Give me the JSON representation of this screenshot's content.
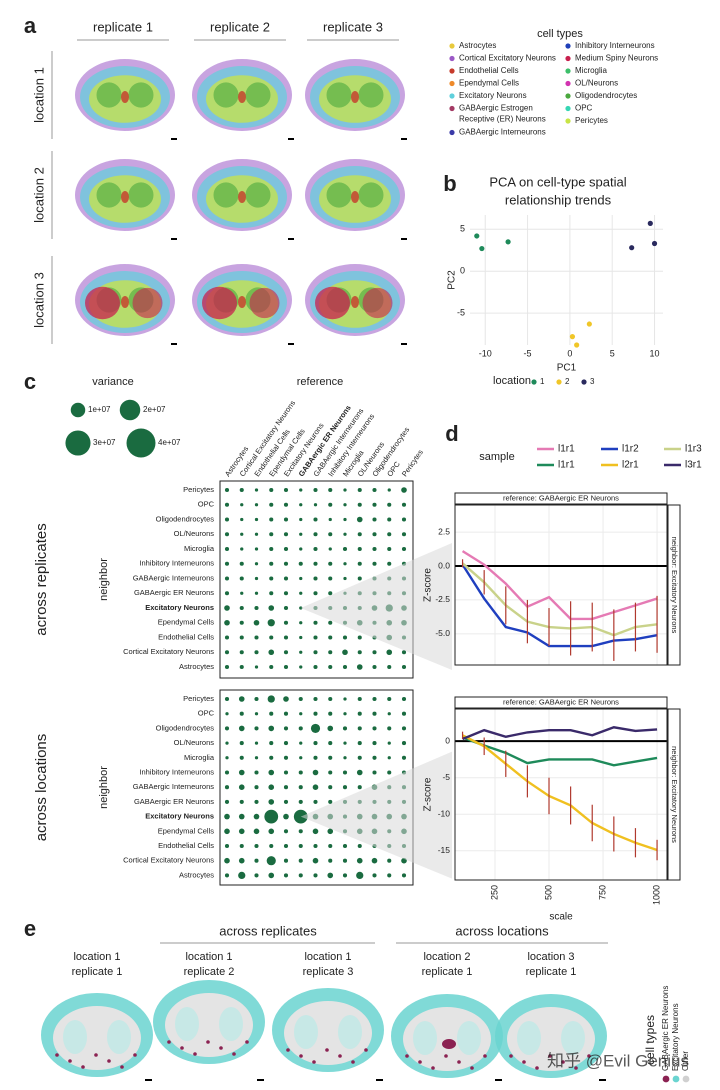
{
  "figure": {
    "panel_labels": [
      "a",
      "b",
      "c",
      "d",
      "e"
    ],
    "panel_a": {
      "columns": [
        "replicate 1",
        "replicate 2",
        "replicate 3"
      ],
      "rows": [
        "location 1",
        "location 2",
        "location 3"
      ],
      "legend_title": "cell types",
      "cell_types": [
        {
          "name": "Astrocytes",
          "color": "#e8c93c"
        },
        {
          "name": "Cortical Excitatory Neurons",
          "color": "#9b59c6"
        },
        {
          "name": "Endothelial Cells",
          "color": "#c63a2b"
        },
        {
          "name": "Ependymal Cells",
          "color": "#ee8a2a"
        },
        {
          "name": "Excitatory Neurons",
          "color": "#5fd0dc"
        },
        {
          "name": [
            "GABAergic Estrogen",
            "Receptive (ER) Neurons"
          ],
          "color": "#a33a64"
        },
        {
          "name": "GABAergic Interneurons",
          "color": "#3a3aa8"
        },
        {
          "name": "Inhibitory Interneurons",
          "color": "#1f3fb8"
        },
        {
          "name": "Medium Spiny Neurons",
          "color": "#c8204e"
        },
        {
          "name": "Microglia",
          "color": "#3cbf6a"
        },
        {
          "name": "OL/Neurons",
          "color": "#d233b0"
        },
        {
          "name": "Oligodendrocytes",
          "color": "#4aa83e"
        },
        {
          "name": "OPC",
          "color": "#36d6b4"
        },
        {
          "name": "Pericytes",
          "color": "#c8e446"
        }
      ]
    },
    "panel_e": {
      "groups": [
        "across replicates",
        "across locations"
      ],
      "samples": [
        [
          "location 1",
          "replicate 1"
        ],
        [
          "location 1",
          "replicate 2"
        ],
        [
          "location 1",
          "replicate 3"
        ],
        [
          "location 2",
          "replicate 1"
        ],
        [
          "location 3",
          "replicate 1"
        ]
      ],
      "legend_title": "cell types",
      "legend": [
        {
          "name": "GABAergic ER Neurons",
          "color": "#8b2252"
        },
        {
          "name": "Excitatory Neurons",
          "color": "#6ad4d0"
        },
        {
          "name": "Other",
          "color": "#d0d0d0"
        }
      ]
    },
    "watermark": "知乎 @Evil Genius"
  },
  "chart_data": [
    {
      "type": "scatter",
      "title": [
        "PCA on cell-type spatial",
        "relationship trends"
      ],
      "x_label": "PC1",
      "y_label": "PC2",
      "xlim": [
        -11.8,
        11
      ],
      "ylim": [
        -8.8,
        6.7
      ],
      "xticks": [
        -10,
        -5,
        0,
        5,
        10
      ],
      "yticks": [
        -5,
        0,
        5
      ],
      "grid": true,
      "legend_title": "location",
      "legend": "bottom",
      "series": [
        {
          "name": "1",
          "color": "#1e8a5a",
          "x": [
            -11,
            -10.4,
            -7.3
          ],
          "y": [
            4.2,
            2.7,
            3.5
          ]
        },
        {
          "name": "2",
          "color": "#f0c628",
          "x": [
            0.3,
            0.8,
            2.3
          ],
          "y": [
            -7.8,
            -8.8,
            -6.3
          ]
        },
        {
          "name": "3",
          "color": "#2a2a5e",
          "x": [
            7.3,
            9.5,
            10
          ],
          "y": [
            2.8,
            5.7,
            3.3
          ]
        }
      ]
    },
    {
      "type": "dotplot",
      "x_label": "reference",
      "y_label": "neighbor",
      "group_label": "across replicates",
      "categories": [
        "Astrocytes",
        "Cortical Excitatory Neurons",
        "Endothelial Cells",
        "Ependymal Cells",
        "Excitatory Neurons",
        "GABAergic ER Neurons",
        "GABAergic Interneurons",
        "Inhibitory Interneurons",
        "Microglia",
        "OL/Neurons",
        "Oligodendrocytes",
        "OPC",
        "Pericytes"
      ],
      "rows": [
        "Pericytes",
        "OPC",
        "Oligodendrocytes",
        "OL/Neurons",
        "Microglia",
        "Inhibitory Interneurons",
        "GABAergic Interneurons",
        "GABAergic ER Neurons",
        "Excitatory Neurons",
        "Ependymal Cells",
        "Endothelial Cells",
        "Cortical Excitatory Neurons",
        "Astrocytes"
      ],
      "color": "#1a6b40",
      "size_title": "variance",
      "size_ticks": [
        {
          "value": 10000000,
          "label": "1e+07"
        },
        {
          "value": 20000000,
          "label": "2e+07"
        },
        {
          "value": 30000000,
          "label": "3e+07"
        },
        {
          "value": 40000000,
          "label": "4e+07"
        }
      ],
      "highlight_row": 8,
      "highlight_column": 5,
      "values": [
        [
          800000.0,
          800000.0,
          500000.0,
          800000.0,
          800000.0,
          500000.0,
          800000.0,
          800000.0,
          500000.0,
          800000.0,
          800000.0,
          500000.0,
          1500000.0
        ],
        [
          800000.0,
          500000.0,
          500000.0,
          800000.0,
          800000.0,
          500000.0,
          500000.0,
          800000.0,
          500000.0,
          800000.0,
          800000.0,
          800000.0,
          800000.0
        ],
        [
          800000.0,
          500000.0,
          500000.0,
          800000.0,
          800000.0,
          500000.0,
          800000.0,
          500000.0,
          500000.0,
          1500000.0,
          800000.0,
          800000.0,
          800000.0
        ],
        [
          800000.0,
          500000.0,
          500000.0,
          800000.0,
          800000.0,
          500000.0,
          800000.0,
          800000.0,
          500000.0,
          800000.0,
          800000.0,
          800000.0,
          800000.0
        ],
        [
          800000.0,
          500000.0,
          500000.0,
          800000.0,
          800000.0,
          500000.0,
          800000.0,
          500000.0,
          800000.0,
          800000.0,
          800000.0,
          800000.0,
          800000.0
        ],
        [
          800000.0,
          800000.0,
          500000.0,
          800000.0,
          800000.0,
          800000.0,
          800000.0,
          800000.0,
          500000.0,
          800000.0,
          800000.0,
          800000.0,
          800000.0
        ],
        [
          800000.0,
          800000.0,
          500000.0,
          800000.0,
          800000.0,
          500000.0,
          800000.0,
          800000.0,
          500000.0,
          800000.0,
          800000.0,
          800000.0,
          800000.0
        ],
        [
          800000.0,
          500000.0,
          500000.0,
          800000.0,
          800000.0,
          500000.0,
          800000.0,
          800000.0,
          500000.0,
          800000.0,
          800000.0,
          800000.0,
          800000.0
        ],
        [
          1500000.0,
          800000.0,
          800000.0,
          1500000.0,
          800000.0,
          500000.0,
          800000.0,
          800000.0,
          800000.0,
          800000.0,
          1500000.0,
          2500000.0,
          1500000.0
        ],
        [
          1500000.0,
          800000.0,
          1500000.0,
          2500000.0,
          800000.0,
          500000.0,
          800000.0,
          800000.0,
          800000.0,
          1500000.0,
          800000.0,
          1500000.0,
          1500000.0
        ],
        [
          800000.0,
          800000.0,
          800000.0,
          800000.0,
          800000.0,
          500000.0,
          800000.0,
          800000.0,
          800000.0,
          800000.0,
          800000.0,
          1500000.0,
          800000.0
        ],
        [
          800000.0,
          800000.0,
          800000.0,
          1500000.0,
          800000.0,
          500000.0,
          800000.0,
          800000.0,
          1500000.0,
          800000.0,
          800000.0,
          1500000.0,
          800000.0
        ],
        [
          800000.0,
          800000.0,
          500000.0,
          800000.0,
          800000.0,
          500000.0,
          800000.0,
          800000.0,
          800000.0,
          1500000.0,
          800000.0,
          800000.0,
          800000.0
        ]
      ]
    },
    {
      "type": "dotplot",
      "y_label": "neighbor",
      "group_label": "across locations",
      "rows": [
        "Pericytes",
        "OPC",
        "Oligodendrocytes",
        "OL/Neurons",
        "Microglia",
        "Inhibitory Interneurons",
        "GABAergic Interneurons",
        "GABAergic ER Neurons",
        "Excitatory Neurons",
        "Ependymal Cells",
        "Endothelial Cells",
        "Cortical Excitatory Neurons",
        "Astrocytes"
      ],
      "color": "#1a6b40",
      "highlight_row": 8,
      "values": [
        [
          800000.0,
          1500000.0,
          800000.0,
          2500000.0,
          1500000.0,
          800000.0,
          800000.0,
          800000.0,
          500000.0,
          800000.0,
          800000.0,
          800000.0,
          800000.0
        ],
        [
          500000.0,
          800000.0,
          500000.0,
          800000.0,
          800000.0,
          500000.0,
          800000.0,
          800000.0,
          500000.0,
          800000.0,
          800000.0,
          500000.0,
          800000.0
        ],
        [
          800000.0,
          1500000.0,
          800000.0,
          1500000.0,
          800000.0,
          800000.0,
          4000000.0,
          1500000.0,
          800000.0,
          800000.0,
          800000.0,
          800000.0,
          800000.0
        ],
        [
          500000.0,
          800000.0,
          500000.0,
          800000.0,
          800000.0,
          500000.0,
          800000.0,
          800000.0,
          500000.0,
          800000.0,
          800000.0,
          500000.0,
          800000.0
        ],
        [
          500000.0,
          800000.0,
          500000.0,
          800000.0,
          800000.0,
          500000.0,
          800000.0,
          800000.0,
          500000.0,
          800000.0,
          800000.0,
          500000.0,
          800000.0
        ],
        [
          800000.0,
          1500000.0,
          800000.0,
          1500000.0,
          800000.0,
          800000.0,
          1500000.0,
          800000.0,
          800000.0,
          1500000.0,
          800000.0,
          800000.0,
          800000.0
        ],
        [
          800000.0,
          1500000.0,
          800000.0,
          1500000.0,
          800000.0,
          800000.0,
          1500000.0,
          800000.0,
          800000.0,
          800000.0,
          1500000.0,
          800000.0,
          800000.0
        ],
        [
          800000.0,
          800000.0,
          800000.0,
          1500000.0,
          800000.0,
          800000.0,
          800000.0,
          800000.0,
          800000.0,
          800000.0,
          800000.0,
          800000.0,
          800000.0
        ],
        [
          1500000.0,
          1500000.0,
          1500000.0,
          9000000.0,
          1500000.0,
          9000000.0,
          1500000.0,
          1500000.0,
          800000.0,
          1500000.0,
          1500000.0,
          1500000.0,
          1500000.0
        ],
        [
          1500000.0,
          1500000.0,
          1500000.0,
          1500000.0,
          800000.0,
          800000.0,
          1500000.0,
          1500000.0,
          800000.0,
          1500000.0,
          1500000.0,
          800000.0,
          1500000.0
        ],
        [
          800000.0,
          800000.0,
          800000.0,
          800000.0,
          800000.0,
          800000.0,
          800000.0,
          800000.0,
          800000.0,
          800000.0,
          800000.0,
          800000.0,
          800000.0
        ],
        [
          1500000.0,
          1500000.0,
          800000.0,
          4000000.0,
          800000.0,
          800000.0,
          1500000.0,
          800000.0,
          800000.0,
          1500000.0,
          1500000.0,
          800000.0,
          1500000.0
        ],
        [
          800000.0,
          2500000.0,
          800000.0,
          1500000.0,
          800000.0,
          800000.0,
          800000.0,
          1500000.0,
          800000.0,
          2500000.0,
          800000.0,
          800000.0,
          800000.0
        ]
      ]
    },
    {
      "type": "line",
      "legend_title": "sample",
      "y_label": "Z-score",
      "strip_top": "reference: GABAergic ER Neurons",
      "strip_right": "neighbor: Excitatory Neurons",
      "x": [
        100,
        200,
        300,
        400,
        500,
        600,
        700,
        800,
        900,
        1000
      ],
      "xlim": [
        65,
        1046
      ],
      "ylim": [
        -7.3,
        4.5
      ],
      "xticks": [
        250,
        500,
        750,
        1000
      ],
      "yticks": [
        {
          "value": -5,
          "label": "-5.0"
        },
        -2.5,
        {
          "value": 0,
          "label": "0.0"
        },
        2.5
      ],
      "grid": true,
      "reference_line": 0,
      "error_color": "#b0392e",
      "series": [
        {
          "name": "l1r1",
          "color": "#e57ab4",
          "values": [
            1.1,
            0.1,
            -1.3,
            -3.0,
            -2.3,
            -3.9,
            -3.9,
            -3.4,
            -2.9,
            -2.4
          ]
        },
        {
          "name": "l1r2",
          "color": "#1f3fbf",
          "values": [
            0.1,
            -2.4,
            -4.5,
            -4.9,
            -5.9,
            -5.9,
            -5.9,
            -5.5,
            -5.4,
            -5.1
          ]
        },
        {
          "name": "l1r3",
          "color": "#c9d28a",
          "values": [
            0.2,
            -1.2,
            -2.9,
            -4.1,
            -4.5,
            -4.6,
            -4.5,
            -5.1,
            -4.5,
            -4.3
          ],
          "errors": [
            0.3,
            0.9,
            1.4,
            1.6,
            1.4,
            2.0,
            1.8,
            1.9,
            1.8,
            2.1
          ]
        }
      ]
    },
    {
      "type": "line",
      "x_label": "scale",
      "y_label": "Z-score",
      "strip_top": "reference: GABAergic ER Neurons",
      "strip_right": "neighbor: Excitatory Neurons",
      "x": [
        100,
        200,
        300,
        400,
        500,
        600,
        700,
        800,
        900,
        1000
      ],
      "xlim": [
        65,
        1046
      ],
      "ylim": [
        -19,
        4.4
      ],
      "xticks": [
        250,
        500,
        750,
        1000
      ],
      "yticks": [
        -15,
        -10,
        -5,
        0
      ],
      "grid": true,
      "reference_line": 0,
      "error_color": "#b0392e",
      "series": [
        {
          "name": "l1r1",
          "color": "#1e8a5a",
          "values": [
            0.5,
            -0.6,
            -1.6,
            -3.0,
            -2.5,
            -2.5,
            -2.5,
            -3.3,
            -2.8,
            -2.3
          ]
        },
        {
          "name": "l2r1",
          "color": "#f0c020",
          "values": [
            0.8,
            -0.7,
            -3.1,
            -5.5,
            -7.5,
            -8.8,
            -11.2,
            -12.7,
            -13.9,
            -14.9
          ],
          "errors": [
            0.5,
            1.2,
            1.8,
            2.2,
            2.5,
            2.6,
            2.5,
            2.4,
            2.0,
            1.4
          ]
        },
        {
          "name": "l3r1",
          "color": "#3a2a6a",
          "values": [
            0.3,
            1.5,
            0.6,
            1.2,
            1.5,
            1.5,
            0.8,
            1.9,
            1.4,
            1.6
          ]
        }
      ]
    }
  ]
}
